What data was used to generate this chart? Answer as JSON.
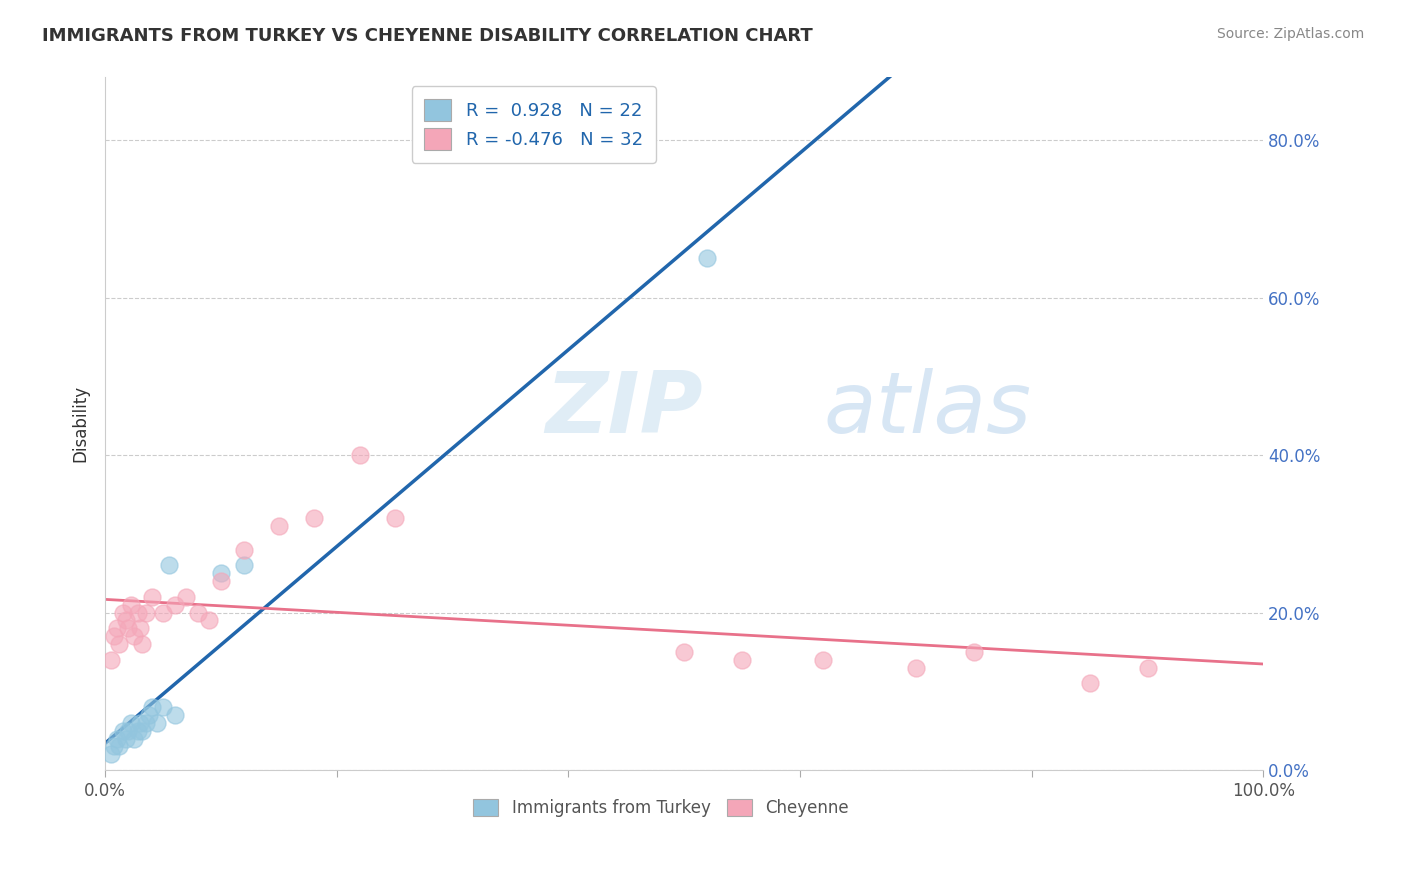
{
  "title": "IMMIGRANTS FROM TURKEY VS CHEYENNE DISABILITY CORRELATION CHART",
  "source": "Source: ZipAtlas.com",
  "ylabel": "Disability",
  "watermark_zip": "ZIP",
  "watermark_atlas": "atlas",
  "blue_label": "Immigrants from Turkey",
  "pink_label": "Cheyenne",
  "blue_R": 0.928,
  "blue_N": 22,
  "pink_R": -0.476,
  "pink_N": 32,
  "blue_color": "#92c5de",
  "pink_color": "#f4a6b8",
  "blue_line_color": "#2166ac",
  "pink_line_color": "#e8718a",
  "xlim": [
    0,
    1.0
  ],
  "ylim": [
    0,
    0.88
  ],
  "ytick_labels": [
    "0.0%",
    "20.0%",
    "40.0%",
    "60.0%",
    "80.0%"
  ],
  "ytick_values": [
    0.0,
    0.2,
    0.4,
    0.6,
    0.8
  ],
  "xtick_labels": [
    "0.0%",
    "",
    "",
    "",
    "",
    "100.0%"
  ],
  "xtick_values": [
    0.0,
    0.2,
    0.4,
    0.6,
    0.8,
    1.0
  ],
  "blue_x": [
    0.005,
    0.008,
    0.01,
    0.012,
    0.015,
    0.018,
    0.02,
    0.022,
    0.025,
    0.028,
    0.03,
    0.032,
    0.035,
    0.038,
    0.04,
    0.045,
    0.05,
    0.055,
    0.06,
    0.1,
    0.12,
    0.52
  ],
  "blue_y": [
    0.02,
    0.03,
    0.04,
    0.03,
    0.05,
    0.04,
    0.05,
    0.06,
    0.04,
    0.05,
    0.06,
    0.05,
    0.06,
    0.07,
    0.08,
    0.06,
    0.08,
    0.26,
    0.07,
    0.25,
    0.26,
    0.65
  ],
  "pink_x": [
    0.005,
    0.008,
    0.01,
    0.012,
    0.015,
    0.018,
    0.02,
    0.022,
    0.025,
    0.028,
    0.03,
    0.032,
    0.035,
    0.04,
    0.05,
    0.06,
    0.07,
    0.08,
    0.09,
    0.1,
    0.12,
    0.15,
    0.18,
    0.22,
    0.25,
    0.5,
    0.55,
    0.62,
    0.7,
    0.75,
    0.85,
    0.9
  ],
  "pink_y": [
    0.14,
    0.17,
    0.18,
    0.16,
    0.2,
    0.19,
    0.18,
    0.21,
    0.17,
    0.2,
    0.18,
    0.16,
    0.2,
    0.22,
    0.2,
    0.21,
    0.22,
    0.2,
    0.19,
    0.24,
    0.28,
    0.31,
    0.32,
    0.4,
    0.32,
    0.15,
    0.14,
    0.14,
    0.13,
    0.15,
    0.11,
    0.13
  ],
  "background_color": "#ffffff",
  "grid_color": "#cccccc"
}
